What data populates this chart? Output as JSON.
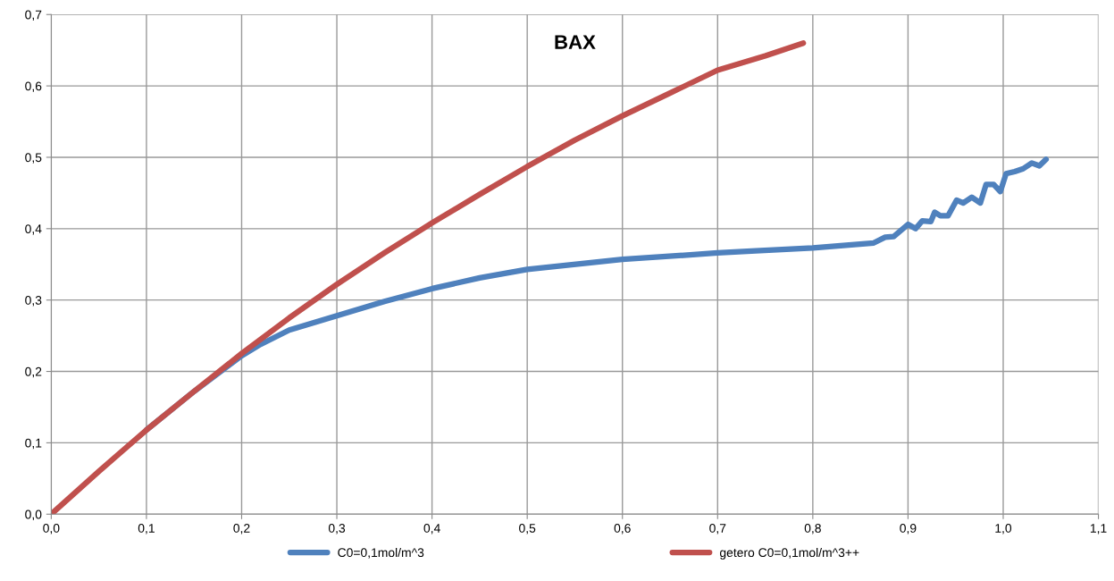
{
  "chart_data": {
    "type": "line",
    "title": "BAX",
    "xlim": [
      0,
      1.1
    ],
    "ylim": [
      0,
      0.7
    ],
    "xticks": [
      {
        "value": 0,
        "label": "0,0"
      },
      {
        "value": 0.1,
        "label": "0,1"
      },
      {
        "value": 0.2,
        "label": "0,2"
      },
      {
        "value": 0.3,
        "label": "0,3"
      },
      {
        "value": 0.4,
        "label": "0,4"
      },
      {
        "value": 0.5,
        "label": "0,5"
      },
      {
        "value": 0.6,
        "label": "0,6"
      },
      {
        "value": 0.7,
        "label": "0,7"
      },
      {
        "value": 0.8,
        "label": "0,8"
      },
      {
        "value": 0.9,
        "label": "0,9"
      },
      {
        "value": 1.0,
        "label": "1,0"
      },
      {
        "value": 1.1,
        "label": "1,1"
      }
    ],
    "yticks": [
      {
        "value": 0,
        "label": "0,0"
      },
      {
        "value": 0.1,
        "label": "0,1"
      },
      {
        "value": 0.2,
        "label": "0,2"
      },
      {
        "value": 0.3,
        "label": "0,3"
      },
      {
        "value": 0.4,
        "label": "0,4"
      },
      {
        "value": 0.5,
        "label": "0,5"
      },
      {
        "value": 0.6,
        "label": "0,6"
      },
      {
        "value": 0.7,
        "label": "0,7"
      }
    ],
    "grid": true,
    "legend": "bottom",
    "marker": "none",
    "line_style": "solid",
    "series": [
      {
        "name": "C0=0,1mol/m^3",
        "color": "#4f81bd",
        "x": [
          0.1,
          0.15,
          0.2,
          0.22,
          0.25,
          0.3,
          0.35,
          0.4,
          0.45,
          0.5,
          0.6,
          0.7,
          0.74,
          0.8,
          0.864,
          0.876,
          0.885,
          0.9,
          0.908,
          0.915,
          0.924,
          0.928,
          0.934,
          0.942,
          0.951,
          0.958,
          0.967,
          0.976,
          0.982,
          0.99,
          0.997,
          1.003,
          1.012,
          1.021,
          1.03,
          1.038,
          1.045
        ],
        "values": [
          0.118,
          0.172,
          0.222,
          0.238,
          0.258,
          0.278,
          0.298,
          0.316,
          0.331,
          0.343,
          0.357,
          0.366,
          0.369,
          0.373,
          0.38,
          0.388,
          0.389,
          0.406,
          0.4,
          0.411,
          0.41,
          0.423,
          0.418,
          0.418,
          0.44,
          0.436,
          0.444,
          0.436,
          0.462,
          0.462,
          0.452,
          0.477,
          0.48,
          0.484,
          0.492,
          0.488,
          0.497
        ]
      },
      {
        "name": "getero C0=0,1mol/m^3++",
        "color": "#c0504d",
        "x": [
          0,
          0.05,
          0.1,
          0.15,
          0.2,
          0.25,
          0.3,
          0.35,
          0.4,
          0.45,
          0.5,
          0.55,
          0.6,
          0.65,
          0.7,
          0.75,
          0.79
        ],
        "values": [
          0,
          0.06,
          0.118,
          0.172,
          0.225,
          0.275,
          0.322,
          0.366,
          0.408,
          0.448,
          0.487,
          0.524,
          0.558,
          0.59,
          0.622,
          0.642,
          0.66
        ]
      }
    ]
  }
}
